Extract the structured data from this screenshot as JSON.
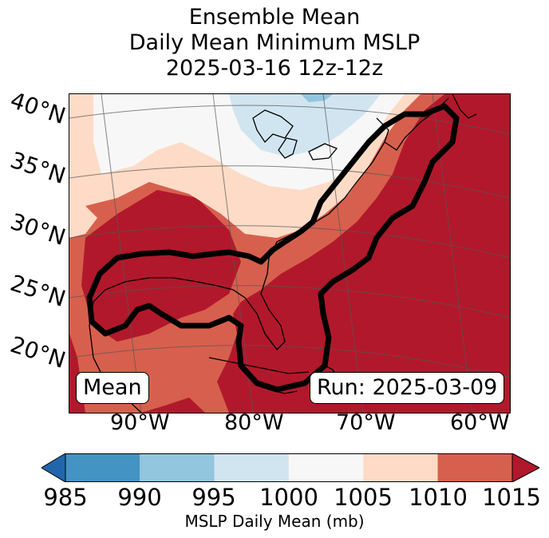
{
  "title": {
    "line1": "Ensemble Mean",
    "line2": "Daily Mean Minimum MSLP",
    "line3": "2025-03-16 12z-12z"
  },
  "map": {
    "lat_labels": [
      "40°N",
      "35°N",
      "30°N",
      "25°N",
      "20°N"
    ],
    "lon_labels": [
      "90°W",
      "80°W",
      "70°W",
      "60°W"
    ],
    "mean_box": "Mean",
    "run_box": "Run: 2025-03-09",
    "contour_color": "#000000"
  },
  "colorbar": {
    "label": "MSLP Daily Mean (mb)",
    "ticks": [
      "985",
      "990",
      "995",
      "1000",
      "1005",
      "1010",
      "1015"
    ],
    "colors": {
      "lt_985": "#2166ac",
      "985_990": "#4393c3",
      "990_995": "#92c5de",
      "995_1000": "#d1e5f0",
      "1000_1005": "#f7f7f7",
      "1005_1010": "#fddbc7",
      "1010_1015": "#d6604d",
      "gt_1015": "#b2182b"
    }
  }
}
